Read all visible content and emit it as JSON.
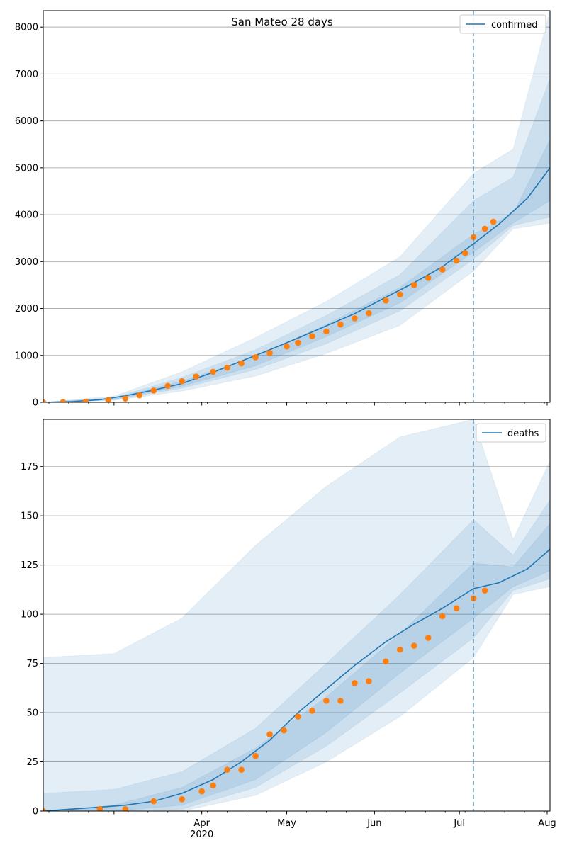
{
  "title": "San Mateo 28 days",
  "colors": {
    "model": "#1f77b4",
    "observed": "#ff7f0e",
    "band": "#1f77b4",
    "grid": "#b0b0b0"
  },
  "chart_data": [
    {
      "type": "line",
      "panel": "confirmed",
      "legend": "confirmed",
      "legend_loc": "top-right",
      "grid": "horizontal",
      "xlim": [
        "2020-02-05",
        "2020-08-02"
      ],
      "ylim": [
        0,
        8350
      ],
      "yticks": [
        0,
        1000,
        2000,
        3000,
        4000,
        5000,
        6000,
        7000,
        8000
      ],
      "xtick_labels": [],
      "forecast_start": "2020-07-06",
      "model_line": {
        "x": [
          "2020-02-05",
          "2020-02-15",
          "2020-02-25",
          "2020-03-05",
          "2020-03-15",
          "2020-03-25",
          "2020-04-05",
          "2020-04-15",
          "2020-04-25",
          "2020-05-05",
          "2020-05-15",
          "2020-05-25",
          "2020-06-05",
          "2020-06-15",
          "2020-06-25",
          "2020-07-06",
          "2020-07-15",
          "2020-07-25",
          "2020-08-02"
        ],
        "y": [
          0,
          15,
          55,
          140,
          260,
          400,
          640,
          880,
          1120,
          1370,
          1630,
          1890,
          2240,
          2550,
          2890,
          3380,
          3800,
          4350,
          5000
        ]
      },
      "bands": {
        "x": [
          "2020-02-05",
          "2020-03-01",
          "2020-03-25",
          "2020-04-20",
          "2020-05-15",
          "2020-06-10",
          "2020-07-06",
          "2020-07-20",
          "2020-08-02"
        ],
        "lower_outer": [
          0,
          40,
          240,
          560,
          1040,
          1640,
          2800,
          3700,
          3820
        ],
        "lower_mid": [
          0,
          55,
          300,
          700,
          1250,
          1950,
          3050,
          3770,
          3950
        ],
        "lower_inner": [
          0,
          65,
          340,
          780,
          1400,
          2120,
          3200,
          3820,
          4300
        ],
        "upper_inner": [
          0,
          85,
          450,
          980,
          1660,
          2450,
          3580,
          4030,
          5600
        ],
        "upper_mid": [
          0,
          100,
          530,
          1120,
          1850,
          2720,
          4300,
          4800,
          6900
        ],
        "upper_outer": [
          0,
          130,
          650,
          1380,
          2150,
          3100,
          4880,
          5400,
          8350
        ]
      },
      "observed": {
        "x": [
          "2020-02-05",
          "2020-02-12",
          "2020-02-20",
          "2020-02-28",
          "2020-03-05",
          "2020-03-10",
          "2020-03-15",
          "2020-03-20",
          "2020-03-25",
          "2020-03-30",
          "2020-04-05",
          "2020-04-10",
          "2020-04-15",
          "2020-04-20",
          "2020-04-25",
          "2020-05-01",
          "2020-05-05",
          "2020-05-10",
          "2020-05-15",
          "2020-05-20",
          "2020-05-25",
          "2020-05-30",
          "2020-06-05",
          "2020-06-10",
          "2020-06-15",
          "2020-06-20",
          "2020-06-25",
          "2020-06-30",
          "2020-07-03",
          "2020-07-06",
          "2020-07-10",
          "2020-07-13"
        ],
        "y": [
          0,
          5,
          15,
          50,
          80,
          150,
          250,
          350,
          450,
          550,
          650,
          740,
          830,
          960,
          1050,
          1190,
          1270,
          1410,
          1510,
          1660,
          1790,
          1900,
          2170,
          2300,
          2500,
          2650,
          2830,
          3020,
          3180,
          3520,
          3700,
          3850
        ]
      }
    },
    {
      "type": "line",
      "panel": "deaths",
      "legend": "deaths",
      "legend_loc": "top-right",
      "grid": "horizontal",
      "xlim": [
        "2020-02-05",
        "2020-08-02"
      ],
      "ylim": [
        0,
        199
      ],
      "yticks": [
        0,
        25,
        50,
        75,
        100,
        125,
        150,
        175
      ],
      "xtick_labels": [
        {
          "date": "2020-04-01",
          "label": "Apr",
          "sub": "2020"
        },
        {
          "date": "2020-05-01",
          "label": "May"
        },
        {
          "date": "2020-06-01",
          "label": "Jun"
        },
        {
          "date": "2020-07-01",
          "label": "Jul"
        },
        {
          "date": "2020-08-01",
          "label": "Aug"
        }
      ],
      "forecast_start": "2020-07-06",
      "model_line": {
        "x": [
          "2020-02-05",
          "2020-02-15",
          "2020-02-25",
          "2020-03-05",
          "2020-03-15",
          "2020-03-25",
          "2020-04-05",
          "2020-04-15",
          "2020-04-25",
          "2020-05-05",
          "2020-05-15",
          "2020-05-25",
          "2020-06-05",
          "2020-06-15",
          "2020-06-25",
          "2020-07-06",
          "2020-07-15",
          "2020-07-25",
          "2020-08-02"
        ],
        "y": [
          0,
          1,
          2,
          3,
          5,
          9,
          16,
          25,
          36,
          50,
          62,
          74,
          86,
          95,
          103,
          113,
          116,
          123,
          133
        ]
      },
      "bands": {
        "x": [
          "2020-02-05",
          "2020-03-01",
          "2020-03-25",
          "2020-04-20",
          "2020-05-15",
          "2020-06-10",
          "2020-07-06",
          "2020-07-20",
          "2020-08-02"
        ],
        "lower_outer": [
          0,
          0,
          0,
          8,
          25,
          48,
          78,
          110,
          114
        ],
        "lower_mid": [
          0,
          0,
          1,
          12,
          33,
          60,
          88,
          112,
          118
        ],
        "lower_inner": [
          0,
          0,
          3,
          16,
          40,
          70,
          98,
          114,
          122
        ],
        "upper_inner": [
          0,
          3,
          12,
          32,
          58,
          90,
          126,
          124,
          146
        ],
        "upper_mid": [
          9,
          11,
          20,
          42,
          75,
          110,
          148,
          130,
          158
        ],
        "upper_outer": [
          78,
          80,
          98,
          135,
          165,
          190,
          199,
          138,
          178
        ]
      },
      "observed": {
        "x": [
          "2020-02-05",
          "2020-02-25",
          "2020-03-05",
          "2020-03-15",
          "2020-03-25",
          "2020-04-01",
          "2020-04-05",
          "2020-04-10",
          "2020-04-15",
          "2020-04-20",
          "2020-04-25",
          "2020-04-30",
          "2020-05-05",
          "2020-05-10",
          "2020-05-15",
          "2020-05-20",
          "2020-05-25",
          "2020-05-30",
          "2020-06-05",
          "2020-06-10",
          "2020-06-15",
          "2020-06-20",
          "2020-06-25",
          "2020-06-30",
          "2020-07-06",
          "2020-07-10"
        ],
        "y": [
          0,
          1,
          1,
          5,
          6,
          10,
          13,
          21,
          21,
          28,
          39,
          41,
          48,
          51,
          56,
          56,
          65,
          66,
          76,
          82,
          84,
          88,
          99,
          103,
          108,
          112
        ]
      }
    }
  ]
}
